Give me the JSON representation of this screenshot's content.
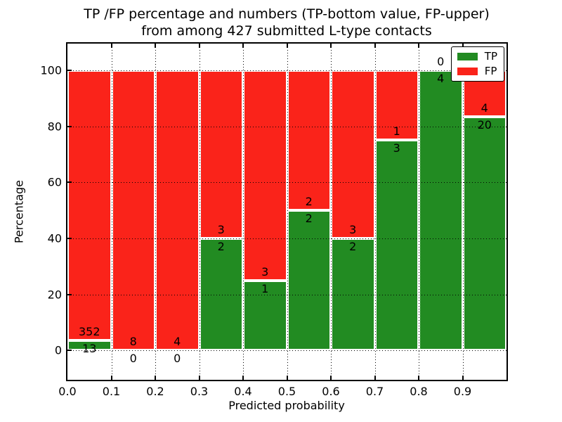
{
  "figure": {
    "title_line1": "TP /FP percentage and numbers (TP-bottom value, FP-upper)",
    "title_line2": "from among 427 submitted L-type contacts"
  },
  "chart_data": {
    "type": "bar",
    "stacked": true,
    "title": "TP /FP percentage and numbers (TP-bottom value, FP-upper)\nfrom among 427 submitted L-type contacts",
    "xlabel": "Predicted probability",
    "ylabel": "Percentage",
    "xlim": [
      0.0,
      1.0
    ],
    "ylim": [
      -10.5,
      109.5
    ],
    "yticks": [
      0,
      20,
      40,
      60,
      80,
      100
    ],
    "xtick_labels": [
      "0.0",
      "0.1",
      "0.2",
      "0.3",
      "0.4",
      "0.5",
      "0.6",
      "0.7",
      "0.8",
      "0.9"
    ],
    "bins": [
      [
        0.0,
        0.1
      ],
      [
        0.1,
        0.2
      ],
      [
        0.2,
        0.3
      ],
      [
        0.3,
        0.4
      ],
      [
        0.4,
        0.5
      ],
      [
        0.5,
        0.6
      ],
      [
        0.6,
        0.7
      ],
      [
        0.7,
        0.8
      ],
      [
        0.8,
        0.9
      ],
      [
        0.9,
        1.0
      ]
    ],
    "total_contacts": 427,
    "grid": true,
    "series": [
      {
        "name": "TP",
        "color": "#228B22",
        "counts": [
          13,
          0,
          0,
          2,
          1,
          2,
          2,
          3,
          4,
          20
        ],
        "percent_of_bin": [
          3.56,
          0,
          0,
          40,
          25,
          50,
          40,
          75,
          100,
          83.33
        ]
      },
      {
        "name": "FP",
        "color": "#FA231A",
        "counts": [
          352,
          8,
          4,
          3,
          3,
          2,
          3,
          1,
          0,
          4
        ],
        "percent_of_bin": [
          96.44,
          100,
          100,
          60,
          75,
          50,
          60,
          25,
          0,
          16.67
        ]
      }
    ],
    "legend": {
      "position": "upper right",
      "entries": [
        {
          "label": "TP",
          "color": "#228B22"
        },
        {
          "label": "FP",
          "color": "#FA231A"
        }
      ]
    }
  }
}
